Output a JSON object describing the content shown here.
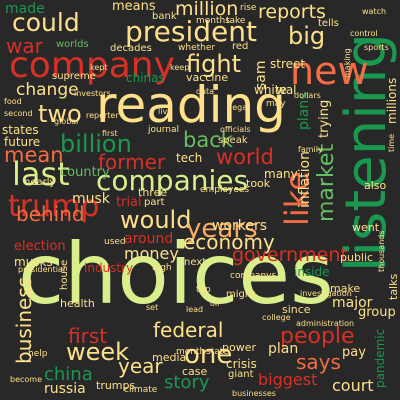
{
  "palette": {
    "background": "#282828",
    "red": "#d73027",
    "salmon": "#f46d43",
    "orange": "#fdae61",
    "cream": "#fee08b",
    "pale_green": "#d9ef8b",
    "light_green": "#a6d96a",
    "green": "#66bd63",
    "dark_green": "#1a9850"
  },
  "words": [
    {
      "text": "choices",
      "color": "pale_green"
    },
    {
      "text": "reading",
      "color": "cream"
    },
    {
      "text": "listening",
      "color": "dark_green"
    },
    {
      "text": "company",
      "color": "red"
    },
    {
      "text": "new",
      "color": "salmon"
    },
    {
      "text": "president",
      "color": "cream"
    },
    {
      "text": "could",
      "color": "cream"
    },
    {
      "text": "million",
      "color": "cream"
    },
    {
      "text": "reports",
      "color": "cream"
    },
    {
      "text": "big",
      "color": "cream"
    },
    {
      "text": "fight",
      "color": "cream"
    },
    {
      "text": "war",
      "color": "red"
    },
    {
      "text": "made",
      "color": "dark_green"
    },
    {
      "text": "means",
      "color": "cream"
    },
    {
      "text": "two",
      "color": "cream"
    },
    {
      "text": "change",
      "color": "cream"
    },
    {
      "text": "billion",
      "color": "dark_green"
    },
    {
      "text": "back",
      "color": "green"
    },
    {
      "text": "world",
      "color": "red"
    },
    {
      "text": "mean",
      "color": "salmon"
    },
    {
      "text": "former",
      "color": "red"
    },
    {
      "text": "last",
      "color": "pale_green"
    },
    {
      "text": "companies",
      "color": "pale_green"
    },
    {
      "text": "like",
      "color": "salmon"
    },
    {
      "text": "market",
      "color": "green"
    },
    {
      "text": "trump",
      "color": "red"
    },
    {
      "text": "behind",
      "color": "salmon"
    },
    {
      "text": "would",
      "color": "cream"
    },
    {
      "text": "years",
      "color": "orange"
    },
    {
      "text": "economy",
      "color": "cream"
    },
    {
      "text": "government",
      "color": "red"
    },
    {
      "text": "money",
      "color": "cream"
    },
    {
      "text": "workers",
      "color": "cream"
    },
    {
      "text": "business",
      "color": "cream"
    },
    {
      "text": "first",
      "color": "red"
    },
    {
      "text": "week",
      "color": "cream"
    },
    {
      "text": "federal",
      "color": "cream"
    },
    {
      "text": "people",
      "color": "red"
    },
    {
      "text": "one",
      "color": "cream"
    },
    {
      "text": "china",
      "color": "dark_green"
    },
    {
      "text": "year",
      "color": "cream"
    },
    {
      "text": "says",
      "color": "salmon"
    },
    {
      "text": "story",
      "color": "dark_green"
    },
    {
      "text": "biggest",
      "color": "red"
    },
    {
      "text": "court",
      "color": "cream"
    },
    {
      "text": "russia",
      "color": "cream"
    },
    {
      "text": "musk",
      "color": "cream"
    },
    {
      "text": "tech",
      "color": "cream"
    },
    {
      "text": "election",
      "color": "red"
    },
    {
      "text": "musks",
      "color": "cream"
    },
    {
      "text": "industry",
      "color": "red"
    },
    {
      "text": "around",
      "color": "red"
    },
    {
      "text": "white",
      "color": "cream"
    },
    {
      "text": "sam",
      "color": "cream"
    },
    {
      "text": "wal",
      "color": "cream"
    },
    {
      "text": "inflation",
      "color": "cream"
    },
    {
      "text": "street",
      "color": "cream"
    },
    {
      "text": "plans",
      "color": "dark_green"
    },
    {
      "text": "trying",
      "color": "cream"
    },
    {
      "text": "millions",
      "color": "cream"
    },
    {
      "text": "group",
      "color": "cream"
    },
    {
      "text": "major",
      "color": "cream"
    },
    {
      "text": "make",
      "color": "cream"
    },
    {
      "text": "since",
      "color": "cream"
    },
    {
      "text": "pay",
      "color": "cream"
    },
    {
      "text": "plan",
      "color": "cream"
    },
    {
      "text": "power",
      "color": "cream"
    },
    {
      "text": "crisis",
      "color": "cream"
    },
    {
      "text": "case",
      "color": "cream"
    },
    {
      "text": "media",
      "color": "cream"
    },
    {
      "text": "talks",
      "color": "cream"
    },
    {
      "text": "inside",
      "color": "dark_green"
    },
    {
      "text": "pandemic",
      "color": "dark_green"
    },
    {
      "text": "might",
      "color": "cream"
    },
    {
      "text": "health",
      "color": "cream"
    },
    {
      "text": "bank",
      "color": "cream"
    },
    {
      "text": "months",
      "color": "cream"
    },
    {
      "text": "take",
      "color": "cream"
    },
    {
      "text": "tells",
      "color": "cream"
    },
    {
      "text": "vaccine",
      "color": "cream"
    },
    {
      "text": "worlds",
      "color": "green"
    },
    {
      "text": "decades",
      "color": "cream"
    },
    {
      "text": "whether",
      "color": "cream"
    },
    {
      "text": "red",
      "color": "cream"
    },
    {
      "text": "chinas",
      "color": "dark_green"
    },
    {
      "text": "supreme",
      "color": "cream"
    },
    {
      "text": "states",
      "color": "cream"
    },
    {
      "text": "future",
      "color": "cream"
    },
    {
      "text": "country",
      "color": "green"
    },
    {
      "text": "nearly",
      "color": "cream"
    },
    {
      "text": "trial",
      "color": "red"
    },
    {
      "text": "three",
      "color": "cream"
    },
    {
      "text": "part",
      "color": "cream"
    },
    {
      "text": "many",
      "color": "cream"
    },
    {
      "text": "took",
      "color": "cream"
    },
    {
      "text": "also",
      "color": "cream"
    },
    {
      "text": "went",
      "color": "cream"
    },
    {
      "text": "public",
      "color": "cream"
    },
    {
      "text": "speak",
      "color": "cream"
    },
    {
      "text": "officials",
      "color": "cream"
    },
    {
      "text": "journal",
      "color": "cream"
    },
    {
      "text": "employees",
      "color": "cream"
    },
    {
      "text": "companys",
      "color": "cream"
    },
    {
      "text": "high",
      "color": "cream"
    },
    {
      "text": "used",
      "color": "cream"
    },
    {
      "text": "next",
      "color": "cream"
    },
    {
      "text": "top",
      "color": "cream"
    },
    {
      "text": "investigation",
      "color": "cream"
    },
    {
      "text": "administration",
      "color": "cream"
    },
    {
      "text": "month",
      "color": "cream"
    },
    {
      "text": "state",
      "color": "cream"
    },
    {
      "text": "giant",
      "color": "cream"
    },
    {
      "text": "trumps",
      "color": "cream"
    },
    {
      "text": "climate",
      "color": "cream"
    },
    {
      "text": "businesses",
      "color": "cream"
    },
    {
      "text": "help",
      "color": "cream"
    },
    {
      "text": "become",
      "color": "cream"
    },
    {
      "text": "presidential",
      "color": "cream"
    },
    {
      "text": "house",
      "color": "cream"
    },
    {
      "text": "watch",
      "color": "cream"
    },
    {
      "text": "sports",
      "color": "cream"
    },
    {
      "text": "time",
      "color": "cream"
    },
    {
      "text": "food",
      "color": "cream"
    },
    {
      "text": "investors",
      "color": "cream"
    },
    {
      "text": "legal",
      "color": "cream"
    },
    {
      "text": "reporter",
      "color": "cream"
    },
    {
      "text": "rise",
      "color": "cream"
    },
    {
      "text": "making",
      "color": "cream"
    },
    {
      "text": "dollars",
      "color": "cream"
    },
    {
      "text": "thousands",
      "color": "cream"
    },
    {
      "text": "control",
      "color": "cream"
    },
    {
      "text": "live",
      "color": "cream"
    },
    {
      "text": "data",
      "color": "cream"
    },
    {
      "text": "first",
      "color": "cream"
    },
    {
      "text": "family",
      "color": "cream"
    },
    {
      "text": "global",
      "color": "cream"
    },
    {
      "text": "second",
      "color": "cream"
    },
    {
      "text": "may",
      "color": "cream"
    },
    {
      "text": "kept",
      "color": "cream"
    },
    {
      "text": "keep",
      "color": "cream"
    },
    {
      "text": "lead",
      "color": "cream"
    },
    {
      "text": "college",
      "color": "cream"
    },
    {
      "text": "oil",
      "color": "cream"
    },
    {
      "text": "set",
      "color": "cream"
    }
  ]
}
